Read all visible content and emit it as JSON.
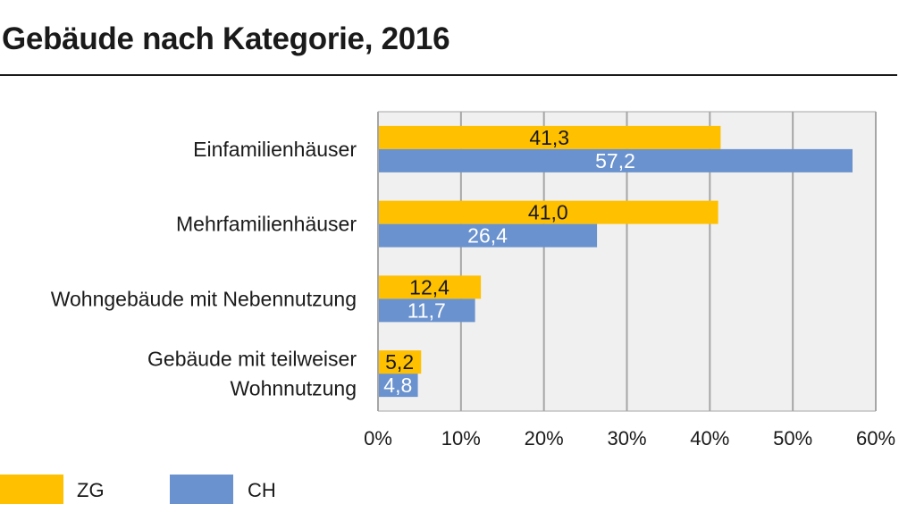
{
  "title": "Gebäude nach Kategorie, 2016",
  "colors": {
    "ZG": "#FFC000",
    "CH": "#6A92CE",
    "plot_bg": "#F0F0F0",
    "grid": "#A6A6A6"
  },
  "legend": [
    {
      "label": "ZG",
      "color": "#FFC000"
    },
    {
      "label": "CH",
      "color": "#6A92CE"
    }
  ],
  "chart_data": {
    "type": "bar",
    "orientation": "horizontal",
    "title": "Gebäude nach Kategorie, 2016",
    "categories": [
      [
        "Einfamilienhäuser"
      ],
      [
        "Mehrfamilienhäuser"
      ],
      [
        "Wohngebäude mit Nebennutzung"
      ],
      [
        "Gebäude mit teilweiser",
        "Wohnnutzung"
      ]
    ],
    "series": [
      {
        "name": "ZG",
        "values": [
          41.3,
          41.0,
          12.4,
          5.2
        ],
        "labels": [
          "41,3",
          "41,0",
          "12,4",
          "5,2"
        ]
      },
      {
        "name": "CH",
        "values": [
          57.2,
          26.4,
          11.7,
          4.8
        ],
        "labels": [
          "57,2",
          "26,4",
          "11,7",
          "4,8"
        ]
      }
    ],
    "xlim": [
      0,
      60
    ],
    "xticks": [
      "0%",
      "10%",
      "20%",
      "30%",
      "40%",
      "50%",
      "60%"
    ],
    "grid": true,
    "legend_position": "bottom-left"
  }
}
